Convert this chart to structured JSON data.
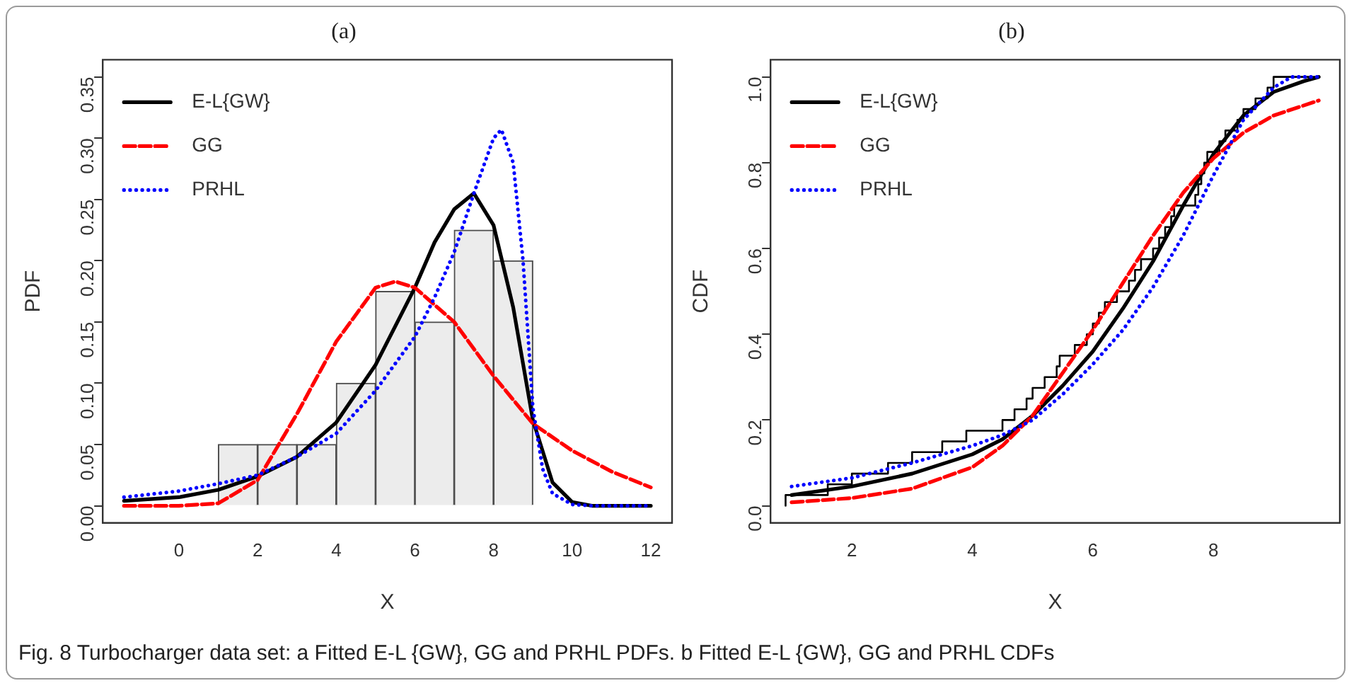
{
  "chart_data": [
    {
      "type": "histogram",
      "title": "(a)",
      "xlabel": "X",
      "ylabel": "PDF",
      "legend": "top left",
      "marker": "none",
      "bins": [
        1,
        2,
        3,
        4,
        5,
        6,
        7,
        8,
        9
      ],
      "values": [
        0.05,
        0.05,
        0.05,
        0.1,
        0.175,
        0.15,
        0.225,
        0.2
      ],
      "color": "#ececec",
      "xlim": [
        -1.94,
        12.54
      ],
      "xticks": [
        0,
        2,
        4,
        6,
        8,
        10,
        12
      ],
      "ylim": [
        -0.014,
        0.364
      ],
      "yticks": [
        {
          "value": 0,
          "label": "0.00"
        },
        {
          "value": 0.05,
          "label": "0.05"
        },
        {
          "value": 0.1,
          "label": "0.10"
        },
        {
          "value": 0.15,
          "label": "0.15"
        },
        {
          "value": 0.2,
          "label": "0.20"
        },
        {
          "value": 0.25,
          "label": "0.25"
        },
        {
          "value": 0.3,
          "label": "0.30"
        },
        {
          "value": 0.35,
          "label": "0.35"
        }
      ],
      "series": [
        {
          "name": "E-L{GW}",
          "type": "line",
          "line_style": "solid",
          "color": "#000000",
          "x": [
            -1.4,
            0,
            1,
            2,
            3,
            4,
            5,
            6,
            6.5,
            7,
            7.5,
            8,
            8.5,
            9,
            9.5,
            10,
            10.5,
            12
          ],
          "values": [
            0.004,
            0.007,
            0.013,
            0.024,
            0.04,
            0.068,
            0.115,
            0.178,
            0.215,
            0.242,
            0.255,
            0.229,
            0.162,
            0.07,
            0.019,
            0.003,
            0,
            0
          ]
        },
        {
          "name": "GG",
          "type": "line",
          "line_style": "dashed",
          "color": "#ff0000",
          "x": [
            -1.4,
            0,
            1,
            2,
            3,
            4,
            5,
            5.5,
            6,
            7,
            8,
            9,
            10,
            11,
            12
          ],
          "values": [
            0,
            0,
            0.002,
            0.021,
            0.075,
            0.134,
            0.178,
            0.183,
            0.178,
            0.15,
            0.106,
            0.067,
            0.045,
            0.028,
            0.015
          ]
        },
        {
          "name": "PRHL",
          "type": "line",
          "line_style": "dotted",
          "color": "#0000ff",
          "x": [
            -1.4,
            0,
            1,
            2,
            3,
            4,
            5,
            6,
            6.5,
            7,
            7.5,
            8,
            8.2,
            8.5,
            8.75,
            9,
            9.25,
            9.5,
            10,
            10.5,
            12
          ],
          "values": [
            0.007,
            0.012,
            0.018,
            0.025,
            0.04,
            0.059,
            0.094,
            0.138,
            0.17,
            0.207,
            0.255,
            0.3,
            0.307,
            0.28,
            0.2,
            0.08,
            0.03,
            0.01,
            0.001,
            0,
            0
          ]
        }
      ],
      "annotations": [
        "Fig. 8 Turbocharger data set: a Fitted E-L {GW}, GG and PRHL PDFs. b Fitted E-L {GW}, GG and PRHL CDFs"
      ]
    },
    {
      "type": "line",
      "title": "(b)",
      "xlabel": "X",
      "ylabel": "CDF",
      "legend": "top left",
      "marker": "none",
      "xlim": [
        0.65,
        10.1
      ],
      "xticks": [
        2,
        4,
        6,
        8
      ],
      "ylim": [
        -0.04,
        1.04
      ],
      "yticks": [
        {
          "value": 0,
          "label": "0.0"
        },
        {
          "value": 0.2,
          "label": "0.2"
        },
        {
          "value": 0.4,
          "label": "0.4"
        },
        {
          "value": 0.6,
          "label": "0.6"
        },
        {
          "value": 0.8,
          "label": "0.8"
        },
        {
          "value": 1,
          "label": "1.0"
        }
      ],
      "series": [
        {
          "type": "step",
          "color": "#000000",
          "x": [
            0.9,
            1.6,
            2.0,
            2.6,
            3.0,
            3.5,
            3.9,
            4.5,
            4.7,
            4.9,
            5.0,
            5.2,
            5.4,
            5.45,
            5.7,
            5.9,
            6.0,
            6.1,
            6.2,
            6.4,
            6.6,
            6.7,
            6.8,
            7.0,
            7.1,
            7.2,
            7.3,
            7.35,
            7.7,
            7.75,
            7.8,
            7.85,
            7.9,
            8.1,
            8.2,
            8.4,
            8.5,
            8.7,
            8.9,
            9.0,
            9.1,
            9.7
          ],
          "values": [
            0,
            0.025,
            0.05,
            0.075,
            0.1,
            0.125,
            0.15,
            0.175,
            0.2,
            0.225,
            0.25,
            0.275,
            0.3,
            0.325,
            0.35,
            0.375,
            0.4,
            0.425,
            0.45,
            0.475,
            0.5,
            0.525,
            0.55,
            0.575,
            0.6,
            0.625,
            0.65,
            0.675,
            0.7,
            0.725,
            0.75,
            0.775,
            0.8,
            0.825,
            0.85,
            0.875,
            0.9,
            0.925,
            0.95,
            0.975,
            1,
            1
          ]
        },
        {
          "name": "E-L{GW}",
          "type": "line",
          "line_style": "solid",
          "color": "#000000",
          "x": [
            1,
            2,
            3,
            4,
            4.5,
            5,
            5.5,
            6,
            6.5,
            7,
            7.5,
            8,
            8.5,
            9,
            9.5,
            9.75
          ],
          "values": [
            0.025,
            0.045,
            0.075,
            0.12,
            0.155,
            0.21,
            0.28,
            0.36,
            0.46,
            0.57,
            0.7,
            0.82,
            0.91,
            0.965,
            0.99,
            1
          ]
        },
        {
          "name": "GG",
          "type": "line",
          "line_style": "dashed",
          "color": "#ff0000",
          "x": [
            1,
            2,
            3,
            4,
            4.5,
            5,
            5.5,
            6,
            6.5,
            7,
            7.5,
            8,
            8.5,
            9,
            9.75
          ],
          "values": [
            0.008,
            0.018,
            0.04,
            0.09,
            0.14,
            0.21,
            0.31,
            0.41,
            0.52,
            0.63,
            0.73,
            0.81,
            0.87,
            0.91,
            0.945
          ]
        },
        {
          "name": "PRHL",
          "type": "line",
          "line_style": "dotted",
          "color": "#0000ff",
          "x": [
            1,
            2,
            3,
            4,
            4.5,
            5,
            5.5,
            6,
            6.5,
            7,
            7.5,
            8,
            8.5,
            9,
            9.3,
            9.75
          ],
          "values": [
            0.045,
            0.065,
            0.1,
            0.14,
            0.165,
            0.2,
            0.26,
            0.33,
            0.41,
            0.51,
            0.63,
            0.77,
            0.9,
            0.975,
            1,
            1
          ]
        }
      ]
    }
  ]
}
